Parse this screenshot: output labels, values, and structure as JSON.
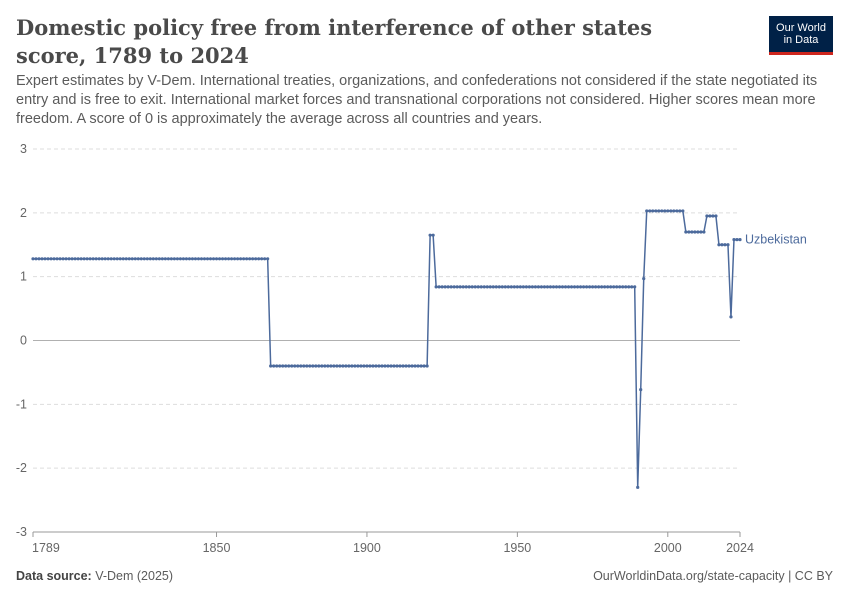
{
  "header": {
    "title": "Domestic policy free from interference of other states score, 1789 to 2024",
    "subtitle": "Expert estimates by V-Dem. International treaties, organizations, and confederations not considered if the state negotiated its entry and is free to exit. International market forces and transnational corporations not considered. Higher scores mean more freedom. A score of 0 is approximately the average across all countries and years.",
    "logo_line1": "Our World",
    "logo_line2": "in Data"
  },
  "footer": {
    "source_label": "Data source:",
    "source_text": "V-Dem (2025)",
    "url_text": "OurWorldinData.org/state-capacity | CC BY"
  },
  "colors": {
    "series": "#4c6a9c",
    "grid": "#dddddd",
    "zero": "#b0b0b0",
    "brand": "#002147",
    "accent": "#ce261e"
  },
  "chart_data": {
    "type": "line",
    "title": "Domestic policy free from interference of other states score, 1789 to 2024",
    "xlim": [
      1789,
      2024
    ],
    "ylim": [
      -3,
      3
    ],
    "x_ticks": [
      "1789",
      "1850",
      "1900",
      "1950",
      "2000",
      "2024"
    ],
    "y_ticks": [
      "3",
      "2",
      "1",
      "0",
      "-1",
      "-2",
      "-3"
    ],
    "grid": true,
    "series": [
      {
        "name": "Uzbekistan",
        "segments": [
          {
            "x_start": 1789,
            "x_end": 1867,
            "y": 1.28
          },
          {
            "x_start": 1868,
            "x_end": 1920,
            "y": -0.4
          },
          {
            "x_start": 1921,
            "x_end": 1922,
            "y": 1.65
          },
          {
            "x_start": 1923,
            "x_end": 1989,
            "y": 0.84
          },
          {
            "x_start": 1990,
            "x_end": 1990,
            "y": -2.3
          },
          {
            "x_start": 1991,
            "x_end": 1991,
            "y": -0.77
          },
          {
            "x_start": 1992,
            "x_end": 1992,
            "y": 0.97
          },
          {
            "x_start": 1993,
            "x_end": 2005,
            "y": 2.03
          },
          {
            "x_start": 2006,
            "x_end": 2012,
            "y": 1.7
          },
          {
            "x_start": 2013,
            "x_end": 2016,
            "y": 1.95
          },
          {
            "x_start": 2017,
            "x_end": 2020,
            "y": 1.5
          },
          {
            "x_start": 2021,
            "x_end": 2021,
            "y": 0.37
          },
          {
            "x_start": 2022,
            "x_end": 2024,
            "y": 1.58
          }
        ]
      }
    ]
  }
}
